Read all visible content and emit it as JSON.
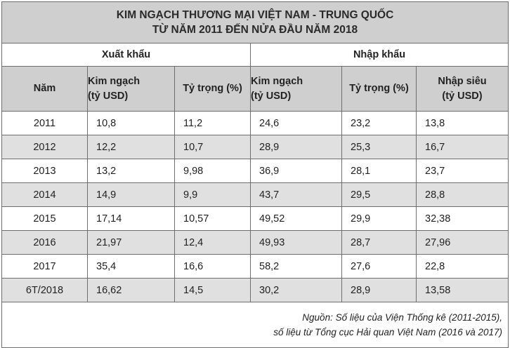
{
  "table": {
    "title_line1": "KIM NGẠCH THƯƠNG MẠI VIỆT NAM - TRUNG QUỐC",
    "title_line2": "TỪ NĂM 2011 ĐẾN NỬA ĐẦU NĂM 2018",
    "group_export": "Xuất khẩu",
    "group_import": "Nhập khẩu",
    "headers": {
      "year": "Năm",
      "export_value_line1": "Kim ngạch",
      "export_value_line2": "(tỷ USD)",
      "export_share": "Tỷ trọng (%)",
      "import_value_line1": "Kim ngạch",
      "import_value_line2": "(tỷ USD)",
      "import_share": "Tỷ trọng (%)",
      "deficit_line1": "Nhập siêu",
      "deficit_line2": "(tỷ USD)"
    },
    "rows": [
      {
        "year": "2011",
        "export_value": "10,8",
        "export_share": "11,2",
        "import_value": "24,6",
        "import_share": "23,2",
        "deficit": "13,8"
      },
      {
        "year": "2012",
        "export_value": "12,2",
        "export_share": "10,7",
        "import_value": "28,9",
        "import_share": "25,3",
        "deficit": "16,7"
      },
      {
        "year": "2013",
        "export_value": "13,2",
        "export_share": "9,98",
        "import_value": "36,9",
        "import_share": "28,1",
        "deficit": "23,7"
      },
      {
        "year": "2014",
        "export_value": "14,9",
        "export_share": "9,9",
        "import_value": "43,7",
        "import_share": "29,5",
        "deficit": "28,8"
      },
      {
        "year": "2015",
        "export_value": "17,14",
        "export_share": "10,57",
        "import_value": "49,52",
        "import_share": "29,9",
        "deficit": "32,38"
      },
      {
        "year": "2016",
        "export_value": "21,97",
        "export_share": "12,4",
        "import_value": "49,93",
        "import_share": "28,7",
        "deficit": "27,96"
      },
      {
        "year": "2017",
        "export_value": "35,4",
        "export_share": "16,6",
        "import_value": "58,2",
        "import_share": "27,6",
        "deficit": "22,8"
      },
      {
        "year": "6T/2018",
        "export_value": "16,62",
        "export_share": "14,5",
        "import_value": "30,2",
        "import_share": "28,9",
        "deficit": "13,58"
      }
    ],
    "source_line1": "Nguồn: Số liệu của Viện Thống kê (2011-2015),",
    "source_line2": "số liệu từ Tổng cục Hải quan Việt Nam (2016 và 2017)"
  }
}
